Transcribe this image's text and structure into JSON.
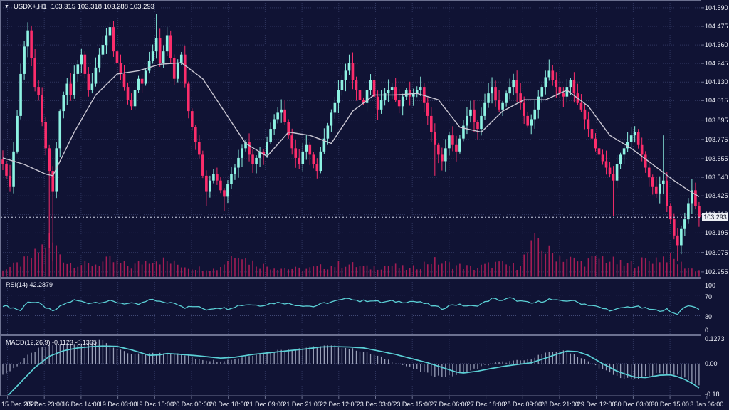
{
  "window": {
    "symbol_period": "USDX+,H1",
    "ohlc_text": "103.315 103.318 103.288 103.293"
  },
  "indicators": {
    "rsi_label": "RSI(14) 42.2879",
    "macd_label": "MACD(12,26,9) -0.1123 -0.1305"
  },
  "price_axis": {
    "labels": [
      "104.590",
      "104.475",
      "104.360",
      "104.245",
      "104.130",
      "104.015",
      "103.895",
      "103.775",
      "103.655",
      "103.540",
      "103.425",
      "103.310",
      "103.195",
      "103.075",
      "102.955"
    ],
    "current_price": "103.293"
  },
  "rsi_axis": [
    "100",
    "70",
    "30",
    "0"
  ],
  "macd_axis": [
    "0.1273",
    "0.00",
    "-0.18"
  ],
  "time_axis": [
    "15 Dec 2022",
    "15 Dec 23:00",
    "16 Dec 14:00",
    "19 Dec 03:00",
    "19 Dec 15:00",
    "20 Dec 06:00",
    "20 Dec 18:00",
    "21 Dec 09:00",
    "21 Dec 21:00",
    "22 Dec 12:00",
    "23 Dec 03:00",
    "23 Dec 15:00",
    "27 Dec 06:00",
    "27 Dec 18:00",
    "28 Dec 09:00",
    "28 Dec 21:00",
    "29 Dec 12:00",
    "30 Dec 03:00",
    "30 Dec 15:00",
    "3 Jan 06:00"
  ],
  "colors": {
    "background": "#101334",
    "bull": "#8df2e2",
    "bear": "#fb2d6b",
    "ma_line": "#c9c6d2",
    "indicator_line": "#5bd0d6",
    "histogram": "#9aa0b8",
    "volume": "#a51d55",
    "grid": "#2f365f",
    "level_line": "#4a5280",
    "panel_border": "rgba(170,176,206,0.6)",
    "price_line": "#d0d4e6",
    "tag_bg": "#eceef4"
  },
  "chart_data": {
    "type": "candlestick+indicators",
    "symbol": "USDX+",
    "timeframe": "H1",
    "last_ohlc": {
      "open": 103.315,
      "high": 103.318,
      "low": 103.288,
      "close": 103.293
    },
    "rsi_value": 42.2879,
    "macd_values": [
      -0.1123,
      -0.1305
    ],
    "price_axis_range": [
      102.955,
      104.59
    ],
    "rsi_range": [
      0,
      100
    ],
    "macd_range": [
      -0.18,
      0.1273
    ],
    "first_open": 103.65,
    "closes": [
      103.62,
      103.55,
      103.48,
      103.7,
      103.92,
      104.18,
      104.35,
      104.45,
      104.28,
      104.1,
      104.05,
      103.88,
      103.72,
      103.58,
      103.45,
      103.72,
      103.95,
      104.05,
      104.12,
      104.05,
      104.18,
      104.24,
      104.3,
      104.18,
      104.08,
      104.12,
      104.22,
      104.3,
      104.36,
      104.42,
      104.47,
      104.32,
      104.25,
      104.18,
      104.1,
      104.02,
      103.98,
      104.08,
      104.15,
      104.12,
      104.2,
      104.26,
      104.32,
      104.4,
      104.25,
      104.32,
      104.42,
      104.28,
      104.15,
      104.25,
      104.3,
      104.12,
      103.95,
      103.85,
      103.76,
      103.68,
      103.55,
      103.45,
      103.52,
      103.56,
      103.52,
      103.46,
      103.42,
      103.5,
      103.56,
      103.6,
      103.66,
      103.72,
      103.76,
      103.68,
      103.62,
      103.66,
      103.7,
      103.68,
      103.76,
      103.84,
      103.9,
      103.94,
      103.96,
      103.88,
      103.8,
      103.72,
      103.66,
      103.62,
      103.7,
      103.74,
      103.68,
      103.62,
      103.58,
      103.7,
      103.78,
      103.86,
      103.94,
      104.0,
      104.08,
      104.14,
      104.2,
      104.25,
      104.14,
      104.08,
      104.02,
      104.0,
      104.08,
      104.14,
      104.04,
      103.96,
      104.02,
      104.06,
      104.08,
      104.1,
      104.02,
      103.98,
      104.04,
      104.08,
      104.04,
      104.06,
      104.08,
      104.1,
      104.0,
      103.92,
      103.82,
      103.74,
      103.68,
      103.64,
      103.72,
      103.8,
      103.74,
      103.7,
      103.78,
      103.86,
      103.92,
      103.96,
      103.88,
      103.84,
      103.92,
      104.0,
      104.06,
      104.1,
      104.02,
      103.96,
      104.0,
      104.06,
      104.1,
      104.14,
      104.06,
      104.0,
      103.92,
      103.86,
      103.9,
      103.96,
      104.04,
      104.1,
      104.16,
      104.2,
      104.14,
      104.1,
      104.06,
      104.04,
      104.1,
      104.14,
      104.06,
      104.0,
      103.96,
      103.9,
      103.84,
      103.78,
      103.72,
      103.68,
      103.64,
      103.6,
      103.56,
      103.52,
      103.62,
      103.68,
      103.72,
      103.76,
      103.8,
      103.82,
      103.74,
      103.68,
      103.6,
      103.54,
      103.48,
      103.44,
      103.5,
      103.52,
      103.36,
      103.28,
      103.18,
      103.12,
      103.22,
      103.28,
      103.38,
      103.46,
      103.36,
      103.293
    ],
    "wick_overrides": {
      "7": {
        "h": 104.5
      },
      "13": {
        "l": 103.1
      },
      "14": {
        "l": 103.02
      },
      "30": {
        "h": 104.5
      },
      "43": {
        "h": 104.55
      },
      "46": {
        "h": 104.47
      },
      "57": {
        "l": 103.36
      },
      "62": {
        "l": 103.33
      },
      "97": {
        "h": 104.3
      },
      "121": {
        "l": 103.55
      },
      "137": {
        "h": 104.16
      },
      "153": {
        "h": 104.27
      },
      "171": {
        "l": 103.3
      },
      "185": {
        "h": 103.8
      },
      "189": {
        "l": 103.02
      },
      "193": {
        "h": 103.53
      }
    },
    "ma_anchors": [
      [
        0,
        103.66
      ],
      [
        6,
        103.62
      ],
      [
        12,
        103.56
      ],
      [
        14,
        103.55
      ],
      [
        20,
        103.82
      ],
      [
        26,
        104.05
      ],
      [
        32,
        104.18
      ],
      [
        38,
        104.2
      ],
      [
        44,
        104.24
      ],
      [
        50,
        104.25
      ],
      [
        56,
        104.15
      ],
      [
        62,
        103.95
      ],
      [
        68,
        103.75
      ],
      [
        74,
        103.67
      ],
      [
        80,
        103.82
      ],
      [
        86,
        103.8
      ],
      [
        92,
        103.75
      ],
      [
        98,
        103.95
      ],
      [
        104,
        104.05
      ],
      [
        110,
        104.05
      ],
      [
        116,
        104.06
      ],
      [
        122,
        104.02
      ],
      [
        128,
        103.85
      ],
      [
        134,
        103.82
      ],
      [
        140,
        103.95
      ],
      [
        146,
        104.02
      ],
      [
        152,
        104.02
      ],
      [
        158,
        104.08
      ],
      [
        164,
        103.98
      ],
      [
        170,
        103.8
      ],
      [
        176,
        103.72
      ],
      [
        182,
        103.62
      ],
      [
        188,
        103.52
      ],
      [
        192,
        103.46
      ],
      [
        195,
        103.42
      ]
    ],
    "rsi_anchors": [
      [
        0,
        50
      ],
      [
        3,
        45
      ],
      [
        5,
        40
      ],
      [
        7,
        58
      ],
      [
        10,
        54
      ],
      [
        14,
        38
      ],
      [
        17,
        52
      ],
      [
        20,
        60
      ],
      [
        24,
        55
      ],
      [
        28,
        57
      ],
      [
        30,
        58
      ],
      [
        34,
        54
      ],
      [
        38,
        52
      ],
      [
        42,
        62
      ],
      [
        45,
        55
      ],
      [
        48,
        56
      ],
      [
        51,
        46
      ],
      [
        54,
        48
      ],
      [
        57,
        42
      ],
      [
        60,
        46
      ],
      [
        63,
        44
      ],
      [
        66,
        50
      ],
      [
        69,
        52
      ],
      [
        72,
        50
      ],
      [
        75,
        54
      ],
      [
        78,
        56
      ],
      [
        81,
        52
      ],
      [
        84,
        50
      ],
      [
        87,
        48
      ],
      [
        90,
        54
      ],
      [
        93,
        58
      ],
      [
        96,
        62
      ],
      [
        97,
        65
      ],
      [
        100,
        58
      ],
      [
        103,
        60
      ],
      [
        106,
        56
      ],
      [
        109,
        58
      ],
      [
        112,
        57
      ],
      [
        115,
        58
      ],
      [
        118,
        54
      ],
      [
        121,
        48
      ],
      [
        123,
        44
      ],
      [
        126,
        52
      ],
      [
        129,
        50
      ],
      [
        132,
        48
      ],
      [
        135,
        56
      ],
      [
        137,
        63
      ],
      [
        140,
        60
      ],
      [
        142,
        64
      ],
      [
        145,
        58
      ],
      [
        148,
        54
      ],
      [
        151,
        58
      ],
      [
        153,
        62
      ],
      [
        156,
        58
      ],
      [
        159,
        60
      ],
      [
        162,
        54
      ],
      [
        165,
        50
      ],
      [
        168,
        44
      ],
      [
        171,
        40
      ],
      [
        174,
        46
      ],
      [
        177,
        48
      ],
      [
        180,
        44
      ],
      [
        183,
        40
      ],
      [
        186,
        42
      ],
      [
        187,
        36
      ],
      [
        189,
        34
      ],
      [
        191,
        48
      ],
      [
        193,
        50
      ],
      [
        194,
        44
      ],
      [
        195,
        42.29
      ]
    ],
    "macd_signal_anchors": [
      [
        0,
        -0.2
      ],
      [
        5,
        -0.1
      ],
      [
        9,
        -0.02
      ],
      [
        13,
        0.04
      ],
      [
        17,
        0.07
      ],
      [
        21,
        0.085
      ],
      [
        25,
        0.092
      ],
      [
        28,
        0.095
      ],
      [
        32,
        0.093
      ],
      [
        36,
        0.075
      ],
      [
        41,
        0.045
      ],
      [
        44,
        0.048
      ],
      [
        46,
        0.055
      ],
      [
        50,
        0.05
      ],
      [
        55,
        0.042
      ],
      [
        61,
        0.03
      ],
      [
        65,
        0.035
      ],
      [
        70,
        0.05
      ],
      [
        75,
        0.06
      ],
      [
        80,
        0.07
      ],
      [
        85,
        0.08
      ],
      [
        89,
        0.09
      ],
      [
        93,
        0.092
      ],
      [
        97,
        0.09
      ],
      [
        101,
        0.085
      ],
      [
        105,
        0.07
      ],
      [
        110,
        0.05
      ],
      [
        115,
        0.025
      ],
      [
        119,
        0.005
      ],
      [
        123,
        -0.02
      ],
      [
        127,
        -0.045
      ],
      [
        129,
        -0.05
      ],
      [
        133,
        -0.04
      ],
      [
        137,
        -0.025
      ],
      [
        141,
        -0.012
      ],
      [
        145,
        -0.002
      ],
      [
        148,
        0.005
      ],
      [
        152,
        0.03
      ],
      [
        155,
        0.05
      ],
      [
        158,
        0.068
      ],
      [
        161,
        0.065
      ],
      [
        164,
        0.045
      ],
      [
        168,
        0.0
      ],
      [
        172,
        -0.04
      ],
      [
        175,
        -0.06
      ],
      [
        177,
        -0.072
      ],
      [
        180,
        -0.075
      ],
      [
        184,
        -0.062
      ],
      [
        187,
        -0.06
      ],
      [
        189,
        -0.07
      ],
      [
        191,
        -0.085
      ],
      [
        193,
        -0.105
      ],
      [
        195,
        -0.1305
      ]
    ],
    "macd_hist_anchors": [
      [
        0,
        -0.06
      ],
      [
        2,
        -0.04
      ],
      [
        4,
        -0.01
      ],
      [
        6,
        0.03
      ],
      [
        10,
        0.08
      ],
      [
        14,
        0.1
      ],
      [
        18,
        0.105
      ],
      [
        22,
        0.11
      ],
      [
        26,
        0.125
      ],
      [
        28,
        0.127
      ],
      [
        30,
        0.1
      ],
      [
        33,
        0.07
      ],
      [
        36,
        0.05
      ],
      [
        39,
        0.05
      ],
      [
        42,
        0.055
      ],
      [
        45,
        0.06
      ],
      [
        48,
        0.055
      ],
      [
        51,
        0.045
      ],
      [
        54,
        0.03
      ],
      [
        57,
        0.02
      ],
      [
        60,
        0.015
      ],
      [
        63,
        0.02
      ],
      [
        66,
        0.03
      ],
      [
        69,
        0.045
      ],
      [
        72,
        0.055
      ],
      [
        75,
        0.065
      ],
      [
        78,
        0.075
      ],
      [
        81,
        0.08
      ],
      [
        84,
        0.085
      ],
      [
        87,
        0.09
      ],
      [
        90,
        0.095
      ],
      [
        93,
        0.095
      ],
      [
        96,
        0.085
      ],
      [
        99,
        0.075
      ],
      [
        102,
        0.06
      ],
      [
        105,
        0.04
      ],
      [
        108,
        0.02
      ],
      [
        111,
        0.0
      ],
      [
        114,
        -0.02
      ],
      [
        117,
        -0.04
      ],
      [
        120,
        -0.06
      ],
      [
        123,
        -0.07
      ],
      [
        126,
        -0.065
      ],
      [
        129,
        -0.05
      ],
      [
        132,
        -0.03
      ],
      [
        135,
        -0.01
      ],
      [
        138,
        0.005
      ],
      [
        141,
        0.01
      ],
      [
        144,
        0.015
      ],
      [
        147,
        0.02
      ],
      [
        150,
        0.045
      ],
      [
        153,
        0.06
      ],
      [
        156,
        0.07
      ],
      [
        159,
        0.06
      ],
      [
        162,
        0.03
      ],
      [
        165,
        0.0
      ],
      [
        168,
        -0.03
      ],
      [
        171,
        -0.06
      ],
      [
        174,
        -0.08
      ],
      [
        177,
        -0.085
      ],
      [
        180,
        -0.07
      ],
      [
        183,
        -0.055
      ],
      [
        186,
        -0.05
      ],
      [
        189,
        -0.06
      ],
      [
        192,
        -0.09
      ],
      [
        194,
        -0.11
      ],
      [
        195,
        -0.1123
      ]
    ],
    "volume_anchors": [
      [
        0,
        10
      ],
      [
        5,
        18
      ],
      [
        9,
        30
      ],
      [
        13,
        52
      ],
      [
        14,
        46
      ],
      [
        18,
        20
      ],
      [
        24,
        16
      ],
      [
        30,
        22
      ],
      [
        36,
        14
      ],
      [
        42,
        26
      ],
      [
        48,
        18
      ],
      [
        54,
        12
      ],
      [
        60,
        10
      ],
      [
        66,
        38
      ],
      [
        68,
        24
      ],
      [
        72,
        16
      ],
      [
        78,
        12
      ],
      [
        84,
        10
      ],
      [
        90,
        14
      ],
      [
        96,
        18
      ],
      [
        102,
        12
      ],
      [
        108,
        16
      ],
      [
        114,
        10
      ],
      [
        120,
        22
      ],
      [
        126,
        16
      ],
      [
        132,
        12
      ],
      [
        138,
        18
      ],
      [
        144,
        14
      ],
      [
        150,
        53
      ],
      [
        152,
        36
      ],
      [
        156,
        28
      ],
      [
        162,
        20
      ],
      [
        168,
        26
      ],
      [
        174,
        16
      ],
      [
        180,
        22
      ],
      [
        186,
        28
      ],
      [
        189,
        20
      ],
      [
        192,
        12
      ],
      [
        195,
        8
      ]
    ]
  }
}
